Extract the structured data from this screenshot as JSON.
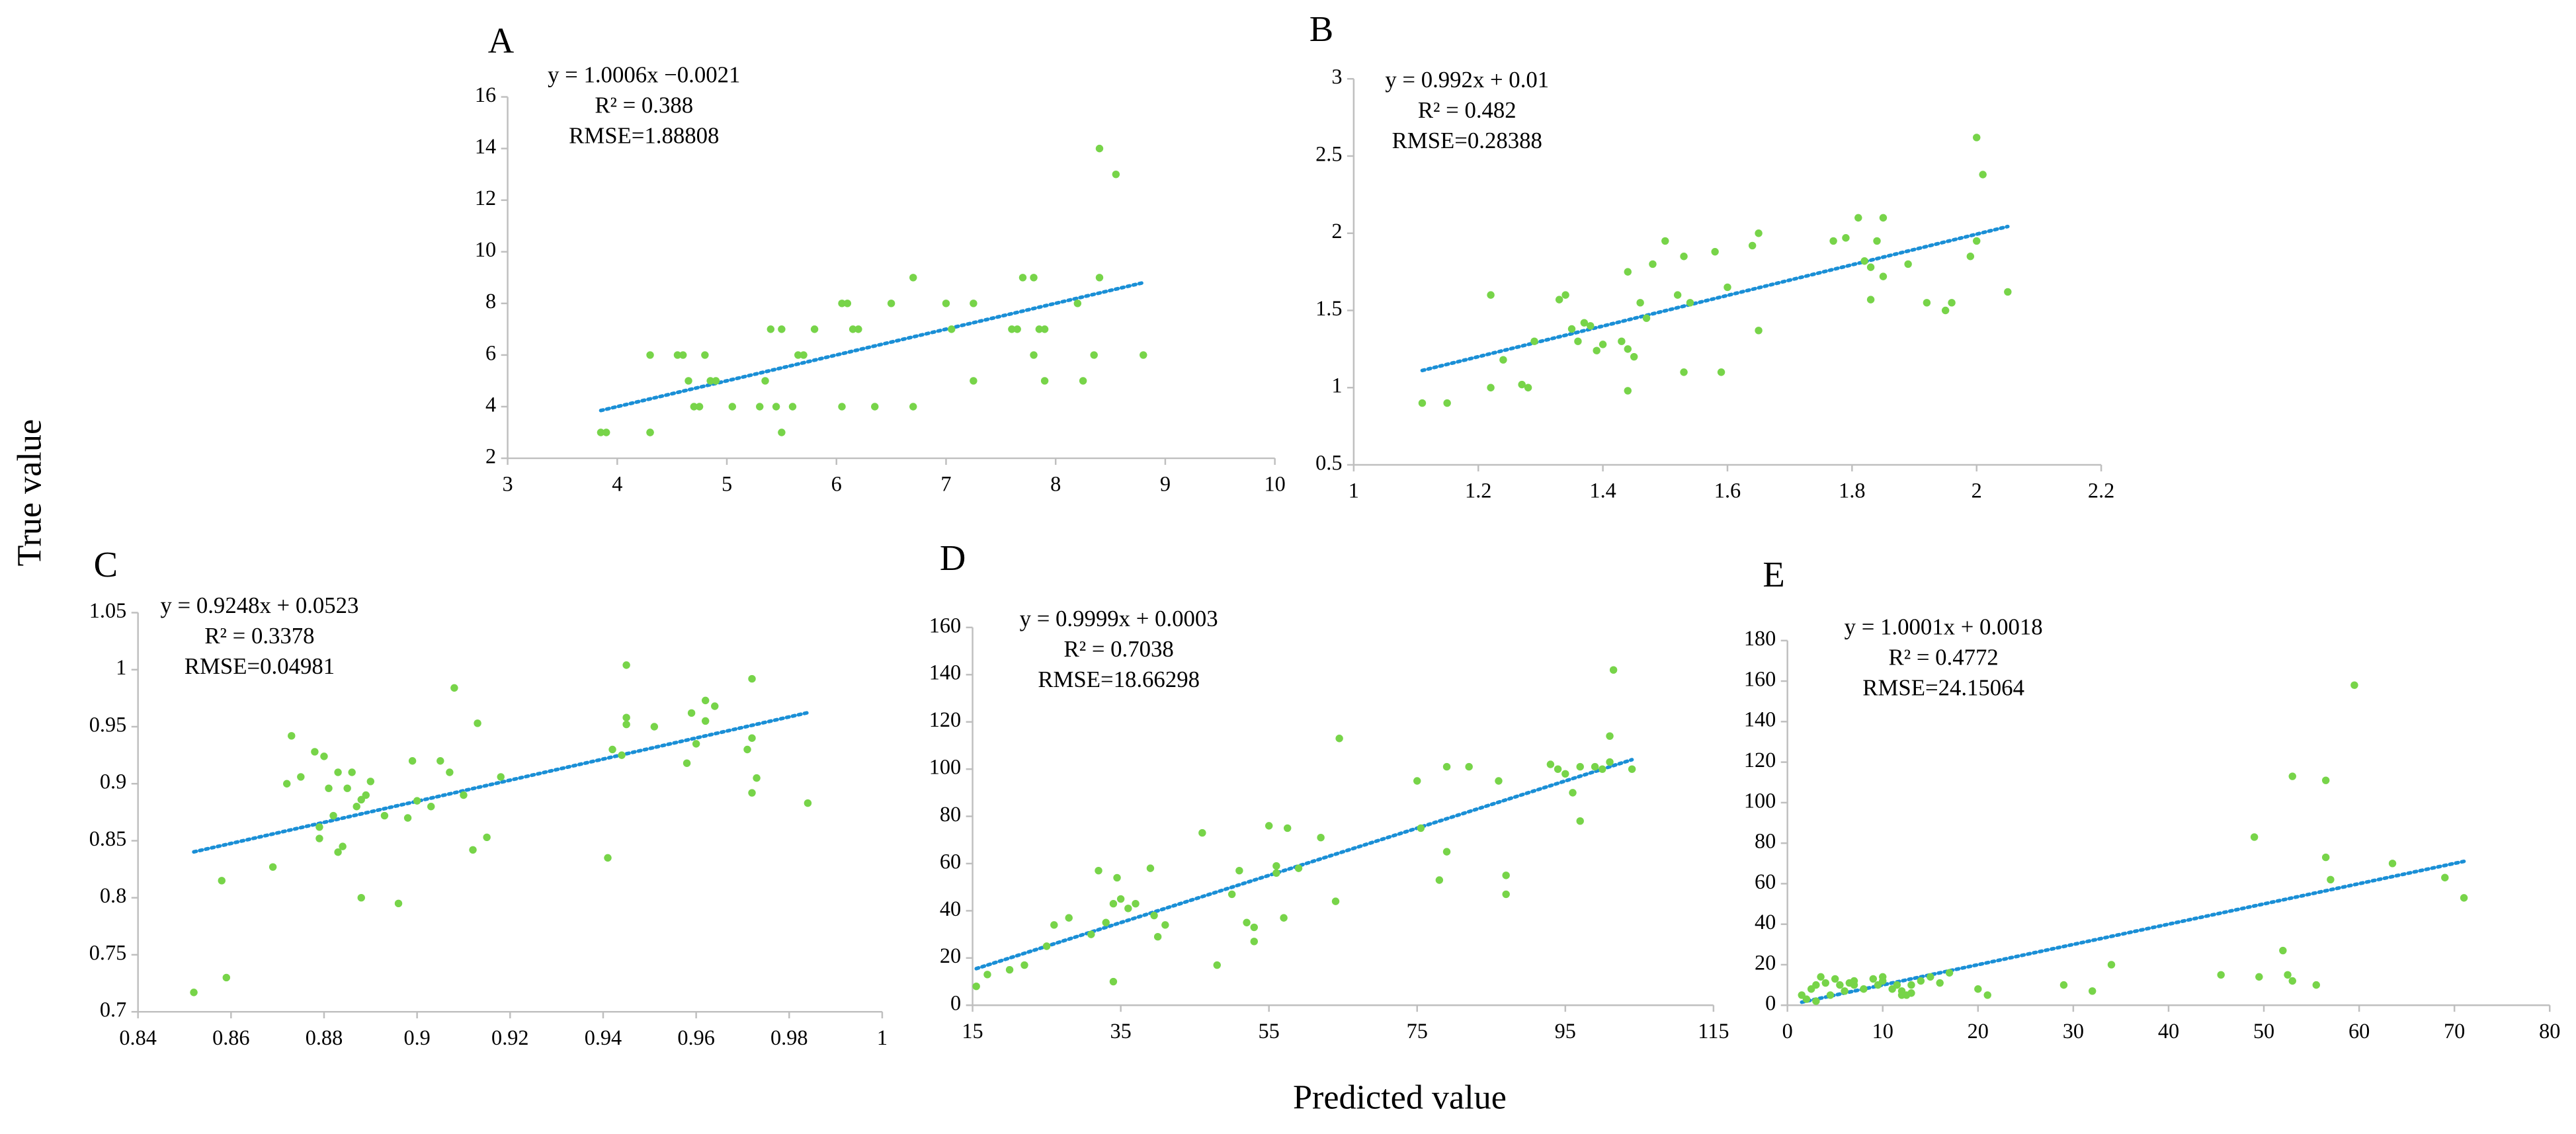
{
  "xlabel": "Predicted value",
  "ylabel": "True value",
  "chart_data": [
    {
      "type": "scatter",
      "title": "A",
      "annotations": [
        "y = 1.0006x −0.0021",
        "R² = 0.388",
        "RMSE=1.88808"
      ],
      "trendline": {
        "slope": 1.0006,
        "intercept": -0.0021,
        "color": "#1a8fd6"
      },
      "color": "#77d449",
      "x": [
        3.85,
        3.9,
        4.3,
        4.3,
        4.3,
        4.55,
        4.6,
        4.65,
        4.7,
        4.75,
        4.8,
        4.85,
        4.9,
        5.05,
        5.3,
        5.35,
        5.4,
        5.45,
        5.5,
        5.5,
        5.6,
        5.65,
        5.7,
        5.8,
        6.05,
        6.05,
        6.1,
        6.15,
        6.2,
        6.35,
        6.5,
        6.7,
        6.7,
        7,
        7.05,
        7.25,
        7.25,
        7.6,
        7.65,
        7.7,
        7.8,
        7.8,
        7.85,
        7.9,
        7.9,
        8.2,
        8.25,
        8.35,
        8.4,
        8.4,
        8.55,
        8.8
      ],
      "y": [
        3,
        3,
        3,
        3,
        6,
        6,
        6,
        5,
        4,
        4,
        6,
        5,
        5,
        4,
        4,
        5,
        7,
        4,
        3,
        7,
        4,
        6,
        6,
        7,
        8,
        4,
        8,
        7,
        7,
        4,
        8,
        9,
        4,
        8,
        7,
        8,
        5,
        7,
        7,
        9,
        9,
        6,
        7,
        7,
        5,
        8,
        5,
        6,
        9,
        14,
        13,
        6
      ],
      "xlim": [
        3,
        10
      ],
      "xticks": [
        3,
        4,
        5,
        6,
        7,
        8,
        9,
        10
      ],
      "ylim": [
        2,
        16
      ],
      "yticks": [
        2,
        4,
        6,
        8,
        10,
        12,
        14,
        16
      ]
    },
    {
      "type": "scatter",
      "title": "B",
      "annotations": [
        "y = 0.992x + 0.01",
        "R² = 0.482",
        "RMSE=0.28388"
      ],
      "trendline": {
        "slope": 0.992,
        "intercept": 0.01,
        "color": "#1a8fd6"
      },
      "color": "#77d449",
      "x": [
        1.11,
        1.15,
        1.22,
        1.22,
        1.24,
        1.27,
        1.28,
        1.29,
        1.33,
        1.34,
        1.35,
        1.36,
        1.37,
        1.38,
        1.39,
        1.4,
        1.43,
        1.44,
        1.44,
        1.44,
        1.45,
        1.46,
        1.47,
        1.48,
        1.5,
        1.52,
        1.53,
        1.53,
        1.54,
        1.58,
        1.59,
        1.6,
        1.64,
        1.65,
        1.65,
        1.77,
        1.79,
        1.81,
        1.82,
        1.83,
        1.83,
        1.84,
        1.85,
        1.85,
        1.89,
        1.92,
        1.95,
        1.96,
        1.99,
        2,
        2,
        2.01,
        2.05
      ],
      "y": [
        0.9,
        0.9,
        1.6,
        1,
        1.18,
        1.02,
        1,
        1.3,
        1.57,
        1.6,
        1.38,
        1.3,
        1.42,
        1.4,
        1.24,
        1.28,
        1.3,
        1.75,
        1.25,
        0.98,
        1.2,
        1.55,
        1.45,
        1.8,
        1.95,
        1.6,
        1.85,
        1.1,
        1.55,
        1.88,
        1.1,
        1.65,
        1.92,
        2,
        1.37,
        1.95,
        1.97,
        2.1,
        1.82,
        1.78,
        1.57,
        1.95,
        2.1,
        1.72,
        1.8,
        1.55,
        1.5,
        1.55,
        1.85,
        1.95,
        2.62,
        2.38,
        1.62
      ],
      "xlim": [
        1,
        2.2
      ],
      "xticks": [
        1,
        1.2,
        1.4,
        1.6,
        1.8,
        2,
        2.2
      ],
      "ylim": [
        0.5,
        3
      ],
      "yticks": [
        0.5,
        1,
        1.5,
        2,
        2.5,
        3
      ]
    },
    {
      "type": "scatter",
      "title": "C",
      "annotations": [
        "y = 0.9248x + 0.0523",
        "R² = 0.3378",
        "RMSE=0.04981"
      ],
      "trendline": {
        "slope": 0.9248,
        "intercept": 0.0523,
        "color": "#1a8fd6"
      },
      "color": "#77d449",
      "x": [
        0.852,
        0.858,
        0.859,
        0.869,
        0.872,
        0.873,
        0.875,
        0.878,
        0.879,
        0.879,
        0.88,
        0.881,
        0.882,
        0.883,
        0.883,
        0.884,
        0.885,
        0.886,
        0.887,
        0.888,
        0.888,
        0.889,
        0.89,
        0.893,
        0.896,
        0.898,
        0.899,
        0.9,
        0.903,
        0.905,
        0.907,
        0.908,
        0.91,
        0.912,
        0.913,
        0.915,
        0.918,
        0.941,
        0.942,
        0.944,
        0.945,
        0.945,
        0.945,
        0.951,
        0.958,
        0.959,
        0.96,
        0.962,
        0.962,
        0.964,
        0.971,
        0.972,
        0.972,
        0.972,
        0.973,
        0.984
      ],
      "y": [
        0.717,
        0.815,
        0.73,
        0.827,
        0.9,
        0.942,
        0.906,
        0.928,
        0.862,
        0.852,
        0.924,
        0.896,
        0.872,
        0.91,
        0.84,
        0.845,
        0.896,
        0.91,
        0.88,
        0.8,
        0.886,
        0.89,
        0.902,
        0.872,
        0.795,
        0.87,
        0.92,
        0.885,
        0.88,
        0.92,
        0.91,
        0.984,
        0.89,
        0.842,
        0.953,
        0.853,
        0.906,
        0.835,
        0.93,
        0.925,
        1.004,
        0.958,
        0.952,
        0.95,
        0.918,
        0.962,
        0.935,
        0.973,
        0.955,
        0.968,
        0.93,
        0.94,
        0.992,
        0.892,
        0.905,
        0.883
      ],
      "xlim": [
        0.84,
        1
      ],
      "xticks": [
        0.84,
        0.86,
        0.88,
        0.9,
        0.92,
        0.94,
        0.96,
        0.98,
        1
      ],
      "ylim": [
        0.7,
        1.05
      ],
      "yticks": [
        0.7,
        0.75,
        0.8,
        0.85,
        0.9,
        0.95,
        1,
        1.05
      ]
    },
    {
      "type": "scatter",
      "title": "D",
      "annotations": [
        "y = 0.9999x + 0.0003",
        "R² = 0.7038",
        "RMSE=18.66298"
      ],
      "trendline": {
        "slope": 0.9999,
        "intercept": 0.0003,
        "color": "#1a8fd6"
      },
      "color": "#77d449",
      "x": [
        15.5,
        17,
        20,
        22,
        25,
        26,
        28,
        31,
        32,
        33,
        34,
        34,
        34.5,
        35,
        36,
        37,
        39,
        39.5,
        40,
        41,
        46,
        48,
        50,
        51,
        52,
        53,
        53,
        55,
        56,
        56,
        57,
        57.5,
        59,
        62,
        64,
        64.5,
        75,
        75.5,
        78,
        79,
        79,
        82,
        86,
        87,
        87,
        93,
        94,
        95,
        96,
        97,
        97,
        99,
        100,
        101,
        101,
        101.5,
        104
      ],
      "y": [
        8,
        13,
        15,
        17,
        25,
        34,
        37,
        30,
        57,
        35,
        10,
        43,
        54,
        45,
        41,
        43,
        58,
        38,
        29,
        34,
        73,
        17,
        47,
        57,
        35,
        33,
        27,
        76,
        56,
        59,
        37,
        75,
        58,
        71,
        44,
        113,
        95,
        75,
        53,
        65,
        101,
        101,
        95,
        47,
        55,
        102,
        100,
        98,
        90,
        101,
        78,
        101,
        100,
        103,
        114,
        142,
        100
      ],
      "xlim": [
        15,
        115
      ],
      "xticks": [
        15,
        35,
        55,
        75,
        95,
        115
      ],
      "ylim": [
        0,
        160
      ],
      "yticks": [
        0,
        20,
        40,
        60,
        80,
        100,
        120,
        140,
        160
      ]
    },
    {
      "type": "scatter",
      "title": "E",
      "annotations": [
        "y = 1.0001x + 0.0018",
        "R² = 0.4772",
        "RMSE=24.15064"
      ],
      "trendline": {
        "slope": 1.0001,
        "intercept": 0.0018,
        "color": "#1a8fd6"
      },
      "color": "#77d449",
      "x": [
        1.5,
        2,
        2.5,
        3,
        3,
        3.5,
        4,
        4.5,
        5,
        5.5,
        6,
        6.5,
        7,
        7,
        8,
        9,
        9.5,
        10,
        10,
        11,
        11.5,
        12,
        12,
        12.5,
        13,
        13,
        14,
        15,
        16,
        17,
        20,
        21,
        29,
        32,
        34,
        45.5,
        49,
        49.5,
        52,
        52.5,
        53,
        53,
        55.5,
        56.5,
        56.5,
        57,
        59.5,
        63.5,
        69,
        71
      ],
      "y": [
        5,
        3,
        8,
        10,
        2,
        14,
        11,
        5,
        13,
        10,
        7,
        11,
        12,
        10,
        8,
        13,
        10,
        12,
        14,
        8,
        10,
        7,
        5,
        5,
        10,
        6,
        12,
        14,
        11,
        16,
        8,
        5,
        10,
        7,
        20,
        15,
        83,
        14,
        27,
        15,
        113,
        12,
        10,
        111,
        73,
        62,
        158,
        70,
        63,
        53
      ],
      "xlim": [
        0,
        80
      ],
      "xticks": [
        0,
        10,
        20,
        30,
        40,
        50,
        60,
        70,
        80
      ],
      "ylim": [
        0,
        180
      ],
      "yticks": [
        0,
        20,
        40,
        60,
        80,
        100,
        120,
        140,
        160,
        180
      ]
    }
  ]
}
